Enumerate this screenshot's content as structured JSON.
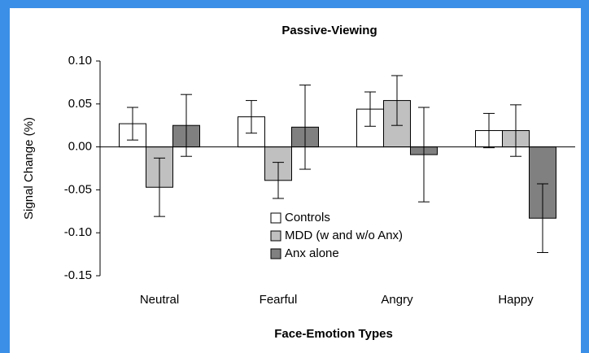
{
  "chart_data": {
    "type": "bar",
    "title": "Passive-Viewing",
    "x_label": "Face-Emotion Types",
    "y_label": "Signal Change (%)",
    "categories": [
      "Neutral",
      "Fearful",
      "Angry",
      "Happy"
    ],
    "series": [
      {
        "name": "Controls",
        "color": "#ffffff",
        "values": [
          0.027,
          0.035,
          0.044,
          0.019
        ],
        "errors": [
          0.019,
          0.019,
          0.02,
          0.02
        ]
      },
      {
        "name": "MDD (w and w/o Anx)",
        "color": "#c0c0c0",
        "values": [
          -0.047,
          -0.039,
          0.054,
          0.019
        ],
        "errors": [
          0.034,
          0.021,
          0.029,
          0.03
        ]
      },
      {
        "name": "Anx alone",
        "color": "#808080",
        "values": [
          0.025,
          0.023,
          -0.009,
          -0.083
        ],
        "errors": [
          0.036,
          0.049,
          0.055,
          0.04
        ]
      }
    ],
    "ylim": [
      -0.15,
      0.1
    ],
    "yticks": [
      {
        "value": 0.1,
        "label": "0.10"
      },
      {
        "value": 0.05,
        "label": "0.05"
      },
      {
        "value": 0,
        "label": "0.00"
      },
      {
        "value": -0.05,
        "label": "-0.05"
      },
      {
        "value": -0.1,
        "label": "-0.10"
      },
      {
        "value": -0.15,
        "label": "-0.15"
      }
    ],
    "grid": false,
    "legend": "lower center"
  }
}
